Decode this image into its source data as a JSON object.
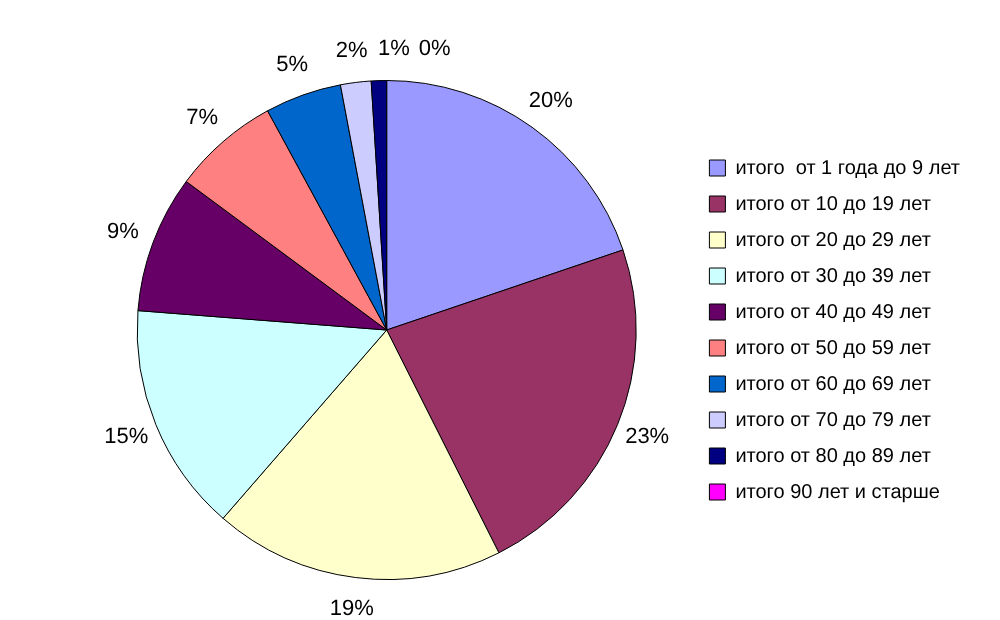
{
  "chart_data": {
    "type": "pie",
    "categories": [
      "итого  от 1 года до 9 лет",
      "итого от 10 до 19 лет",
      "итого от 20 до 29 лет",
      "итого от 30 до 39 лет",
      "итого от 40 до 49 лет",
      "итого от 50 до 59 лет",
      "итого от 60 до 69 лет",
      "итого от 70 до 79 лет",
      "итого от 80 до 89 лет",
      "итого 90 лет и старше"
    ],
    "values": [
      20,
      23,
      19,
      15,
      9,
      7,
      5,
      2,
      1,
      0
    ],
    "colors": [
      "#9999ff",
      "#993366",
      "#ffffcc",
      "#ccffff",
      "#660066",
      "#ff8080",
      "#0066cc",
      "#ccccff",
      "#000080",
      "#ff00ff"
    ],
    "value_labels": [
      "20%",
      "23%",
      "19%",
      "15%",
      "9%",
      "7%",
      "5%",
      "2%",
      "1%",
      "0%"
    ],
    "legend": "right"
  }
}
